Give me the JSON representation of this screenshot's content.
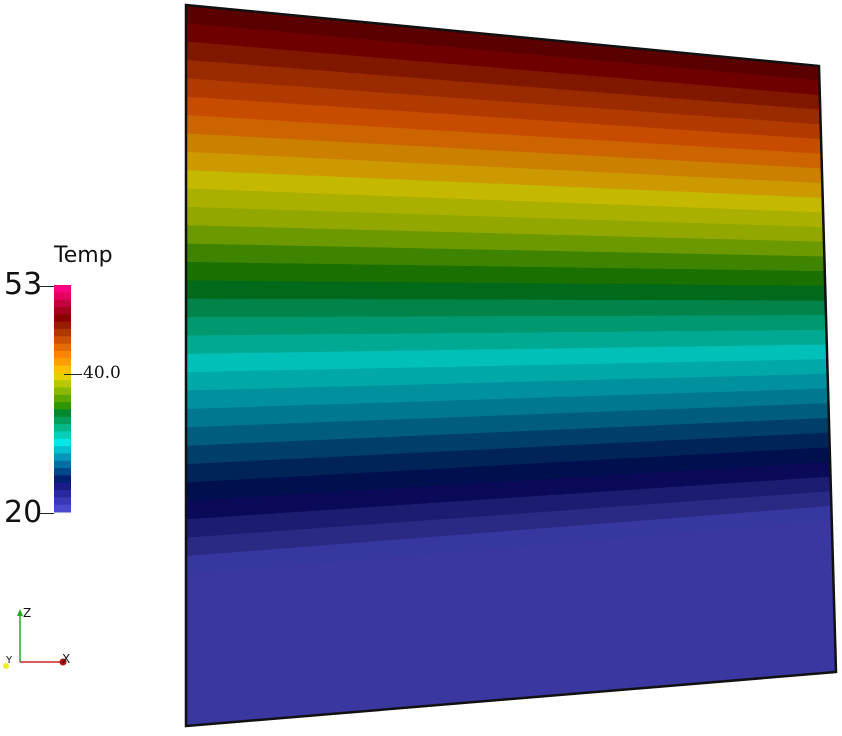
{
  "scalar_bar": {
    "title": "Temp",
    "max_label": "53",
    "min_label": "20",
    "mid_label": "40.0",
    "colors": [
      "#ff0080",
      "#e8005e",
      "#c5003e",
      "#a7001f",
      "#8a0000",
      "#9a1c00",
      "#b23600",
      "#cc5000",
      "#e56a00",
      "#ff8500",
      "#ffa000",
      "#ffbe00",
      "#e5d000",
      "#b8c800",
      "#8ab800",
      "#5ca800",
      "#2e9800",
      "#00882e",
      "#00a05c",
      "#00b88a",
      "#00d0b8",
      "#00e8e8",
      "#00c0d0",
      "#0098b8",
      "#0070a0",
      "#004888",
      "#002070",
      "#1a1a88",
      "#2828a0",
      "#3838b8",
      "#4848d0"
    ]
  },
  "surface": {
    "band_colors": [
      "#5b0000",
      "#6e0000",
      "#801800",
      "#9a2a00",
      "#b03a00",
      "#c84c00",
      "#cc6400",
      "#cc8000",
      "#cc9a00",
      "#c4b800",
      "#aab000",
      "#92a800",
      "#6c9800",
      "#3e8400",
      "#1a7000",
      "#006a1a",
      "#00844a",
      "#00986e",
      "#00aa92",
      "#00c0b8",
      "#00a8a8",
      "#00909e",
      "#007890",
      "#005e7c",
      "#003f68",
      "#002458",
      "#00104e",
      "#0a0a58",
      "#1c1c70",
      "#2a2a84",
      "#3737a0"
    ],
    "fill_color": "#3a38a0"
  },
  "axes": {
    "z": "Z",
    "y": "Y",
    "x": "X"
  }
}
